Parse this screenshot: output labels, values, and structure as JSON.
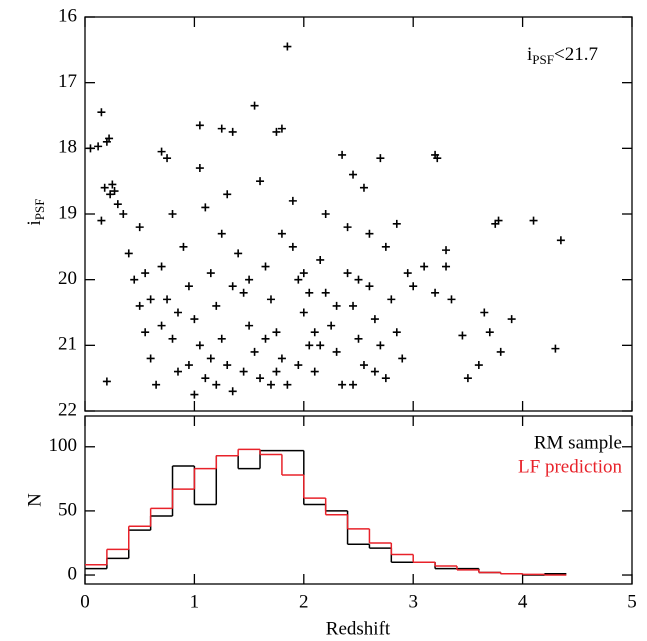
{
  "chart_data": [
    {
      "type": "scatter",
      "ylabel": [
        "i",
        "PSF"
      ],
      "annotation": [
        "i",
        "PSF",
        "<21.7"
      ],
      "color": "#000000",
      "xlim": [
        0,
        5
      ],
      "ylim": [
        22,
        16
      ],
      "yticks": [
        16,
        17,
        18,
        19,
        20,
        21,
        22
      ],
      "x": [
        1.85,
        1.55,
        0.15,
        0.2,
        0.22,
        0.05,
        0.12,
        1.05,
        1.25,
        1.35,
        1.75,
        1.8,
        0.7,
        0.75,
        1.05,
        2.35,
        2.7,
        3.2,
        3.22,
        0.25,
        0.18,
        0.23,
        0.27,
        0.3,
        0.15,
        0.35,
        3.75,
        3.78,
        4.1,
        4.35,
        3.3,
        3.9,
        4.3,
        0.2,
        3.6,
        3.5,
        3.45,
        3.7,
        3.8,
        3.65,
        3.2,
        3.1,
        3.3,
        3.35,
        3.0,
        2.95,
        2.85,
        2.75,
        2.6,
        2.55,
        2.45,
        0.4,
        0.45,
        0.5,
        0.55,
        0.6,
        0.65,
        0.7,
        0.75,
        0.8,
        0.85,
        0.9,
        0.95,
        1.0,
        1.05,
        1.1,
        1.15,
        1.2,
        1.25,
        1.3,
        1.35,
        1.4,
        1.45,
        1.5,
        1.55,
        1.6,
        1.65,
        1.7,
        1.75,
        1.8,
        1.85,
        1.9,
        1.95,
        2.0,
        2.05,
        2.1,
        2.15,
        2.2,
        2.25,
        2.3,
        2.35,
        2.4,
        2.45,
        2.5,
        2.55,
        2.6,
        2.65,
        2.7,
        2.75,
        2.8,
        2.85,
        2.9,
        0.5,
        0.8,
        1.1,
        1.3,
        1.6,
        1.9,
        2.2,
        2.4,
        1.0,
        0.95,
        1.15,
        1.45,
        1.7,
        1.95,
        2.15,
        2.45,
        0.7,
        1.2,
        1.5,
        1.8,
        2.0,
        2.3,
        0.55,
        0.85,
        1.35,
        1.65,
        2.05,
        2.5,
        2.65,
        1.25,
        0.6,
        1.75,
        2.1
      ],
      "y": [
        16.45,
        17.35,
        17.45,
        17.9,
        17.85,
        18.0,
        17.97,
        17.65,
        17.7,
        17.75,
        17.75,
        17.7,
        18.05,
        18.15,
        18.3,
        18.1,
        18.15,
        18.1,
        18.15,
        18.55,
        18.6,
        18.7,
        18.65,
        18.85,
        19.1,
        19.0,
        19.15,
        19.1,
        19.1,
        19.4,
        19.55,
        20.6,
        21.05,
        21.55,
        21.3,
        21.5,
        20.85,
        20.8,
        21.1,
        20.5,
        20.2,
        19.8,
        19.8,
        20.3,
        20.1,
        19.9,
        19.15,
        19.5,
        19.3,
        18.6,
        18.4,
        19.6,
        20.0,
        20.4,
        20.8,
        21.2,
        21.6,
        19.8,
        20.3,
        20.9,
        21.4,
        19.5,
        20.1,
        20.6,
        21.0,
        21.5,
        19.9,
        20.4,
        20.9,
        21.3,
        21.7,
        19.6,
        20.2,
        20.7,
        21.1,
        21.5,
        19.8,
        20.3,
        20.8,
        21.2,
        21.6,
        19.5,
        20.0,
        20.5,
        21.0,
        21.4,
        19.7,
        20.2,
        20.7,
        21.1,
        21.6,
        19.9,
        20.4,
        20.9,
        21.3,
        20.1,
        20.6,
        21.0,
        21.5,
        20.3,
        20.8,
        21.2,
        19.2,
        19.0,
        18.9,
        18.7,
        18.5,
        18.8,
        19.0,
        19.2,
        21.75,
        21.3,
        21.2,
        21.4,
        21.6,
        21.3,
        21.0,
        21.6,
        20.7,
        21.6,
        20.0,
        19.3,
        19.9,
        20.4,
        19.9,
        20.5,
        20.1,
        20.9,
        20.2,
        20.0,
        21.4,
        19.3,
        20.3,
        21.4,
        20.8
      ]
    },
    {
      "type": "histogram",
      "xlabel": "Redshift",
      "ylabel": "N",
      "legend": "upper right",
      "xlim": [
        0,
        5
      ],
      "xticks": [
        0,
        1,
        2,
        3,
        4,
        5
      ],
      "ylim": [
        -7,
        124
      ],
      "yticks": [
        0,
        50,
        100
      ],
      "bins": [
        0,
        0.2,
        0.4,
        0.6,
        0.8,
        1.0,
        1.2,
        1.4,
        1.6,
        1.8,
        2.0,
        2.2,
        2.4,
        2.6,
        2.8,
        3.0,
        3.2,
        3.4,
        3.6,
        3.8,
        4.0,
        4.2,
        4.4
      ],
      "series": [
        {
          "name": "RM sample",
          "color": "#000000",
          "values": [
            5,
            13,
            35,
            46,
            85,
            55,
            93,
            83,
            97,
            97,
            55,
            50,
            24,
            21,
            10,
            10,
            5,
            5,
            2,
            1,
            0,
            1
          ]
        },
        {
          "name": "LF prediction",
          "color": "#e8222a",
          "values": [
            8,
            20,
            38,
            52,
            67,
            83,
            93,
            98,
            94,
            78,
            60,
            47,
            36,
            25,
            16,
            10,
            7,
            4,
            2,
            1,
            0.5,
            0
          ]
        }
      ]
    }
  ]
}
